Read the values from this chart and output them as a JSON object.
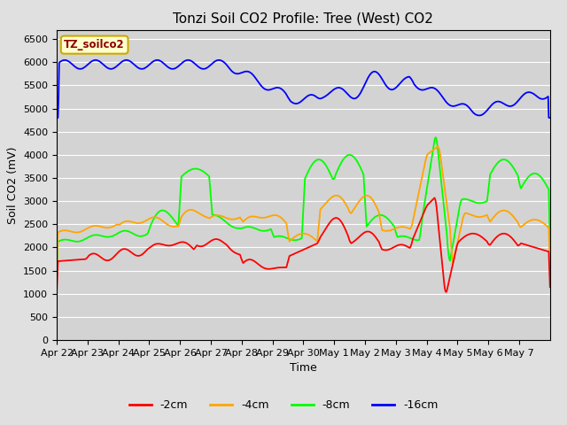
{
  "title": "Tonzi Soil CO2 Profile: Tree (West) CO2",
  "xlabel": "Time",
  "ylabel": "Soil CO2 (mV)",
  "ylim": [
    0,
    6700
  ],
  "yticks": [
    0,
    500,
    1000,
    1500,
    2000,
    2500,
    3000,
    3500,
    4000,
    4500,
    5000,
    5500,
    6000,
    6500
  ],
  "background_color": "#e0e0e0",
  "plot_bg_color": "#d3d3d3",
  "legend_label": "TZ_soilco2",
  "legend_bg": "#ffffcc",
  "legend_border": "#ccaa00",
  "series_colors": {
    "-2cm": "#ff0000",
    "-4cm": "#ffa500",
    "-8cm": "#00ff00",
    "-16cm": "#0000ff"
  },
  "xtick_labels": [
    "Apr 22",
    "Apr 23",
    "Apr 24",
    "Apr 25",
    "Apr 26",
    "Apr 27",
    "Apr 28",
    "Apr 29",
    "Apr 30",
    "May 1",
    "May 2",
    "May 3",
    "May 4",
    "May 5",
    "May 6",
    "May 7"
  ],
  "title_fontsize": 11,
  "axis_fontsize": 9,
  "tick_fontsize": 8
}
